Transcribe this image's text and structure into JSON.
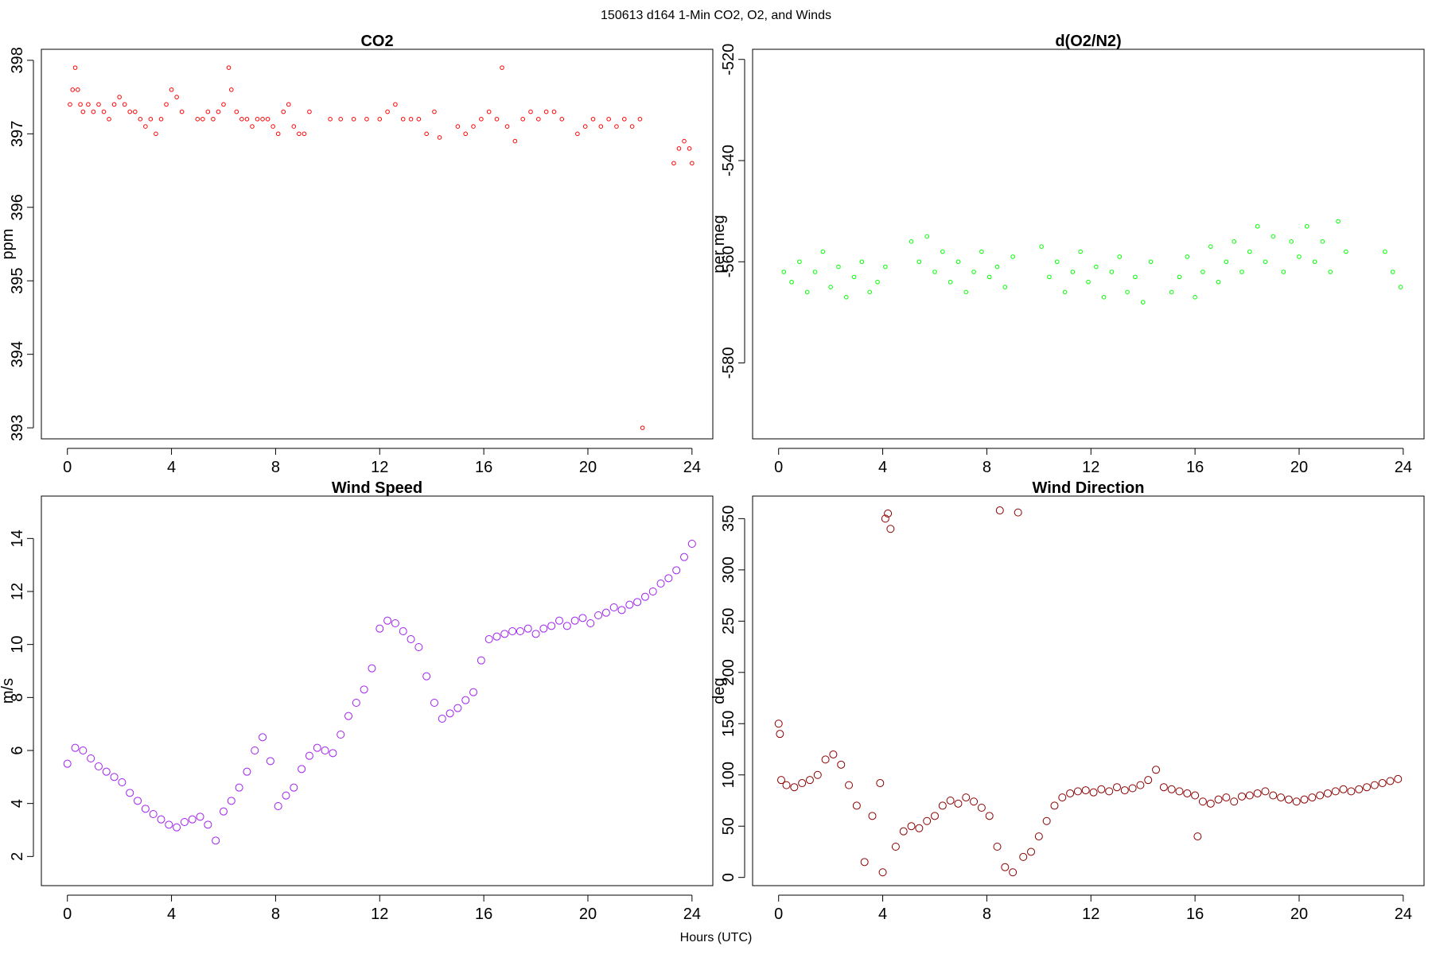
{
  "figure": {
    "suptitle": "150613   d164   1-Min CO2, O2, and Winds",
    "xlabel": "Hours (UTC)"
  },
  "chart_data": [
    {
      "type": "scatter",
      "title": "CO2",
      "xlabel": "",
      "ylabel": "ppm",
      "xlim": [
        -1,
        24.8
      ],
      "ylim": [
        392.85,
        398.15
      ],
      "xticks": [
        0,
        4,
        8,
        12,
        16,
        20,
        24
      ],
      "yticks": [
        393,
        394,
        395,
        396,
        397,
        398
      ],
      "color": "#ff0000",
      "grid": false,
      "x": [
        0.1,
        0.2,
        0.3,
        0.4,
        0.5,
        0.6,
        0.8,
        1.0,
        1.2,
        1.4,
        1.6,
        1.8,
        2.0,
        2.2,
        2.4,
        2.6,
        2.8,
        3.0,
        3.2,
        3.4,
        3.6,
        3.8,
        4.0,
        4.2,
        4.4,
        5.0,
        5.2,
        5.4,
        5.6,
        5.8,
        6.0,
        6.2,
        6.3,
        6.5,
        6.7,
        6.9,
        7.1,
        7.3,
        7.5,
        7.7,
        7.9,
        8.1,
        8.3,
        8.5,
        8.7,
        8.9,
        9.1,
        9.3,
        10.1,
        10.5,
        11.0,
        11.5,
        12.0,
        12.3,
        12.6,
        12.9,
        13.2,
        13.5,
        13.8,
        14.1,
        14.3,
        15.0,
        15.3,
        15.6,
        15.9,
        16.2,
        16.5,
        16.7,
        16.9,
        17.2,
        17.5,
        17.8,
        18.1,
        18.4,
        18.7,
        19.0,
        19.6,
        19.9,
        20.2,
        20.5,
        20.8,
        21.1,
        21.4,
        21.7,
        22.0,
        22.1,
        23.3,
        23.5,
        23.7,
        23.9,
        24.0
      ],
      "y": [
        397.4,
        397.6,
        397.9,
        397.6,
        397.4,
        397.3,
        397.4,
        397.3,
        397.4,
        397.3,
        397.2,
        397.4,
        397.5,
        397.4,
        397.3,
        397.3,
        397.2,
        397.1,
        397.2,
        397.0,
        397.2,
        397.4,
        397.6,
        397.5,
        397.3,
        397.2,
        397.2,
        397.3,
        397.2,
        397.3,
        397.4,
        397.9,
        397.6,
        397.3,
        397.2,
        397.2,
        397.1,
        397.2,
        397.2,
        397.2,
        397.1,
        397.0,
        397.3,
        397.4,
        397.1,
        397.0,
        397.0,
        397.3,
        397.2,
        397.2,
        397.2,
        397.2,
        397.2,
        397.3,
        397.4,
        397.2,
        397.2,
        397.2,
        397.0,
        397.3,
        396.95,
        397.1,
        397.0,
        397.1,
        397.2,
        397.3,
        397.2,
        397.9,
        397.1,
        396.9,
        397.2,
        397.3,
        397.2,
        397.3,
        397.3,
        397.2,
        397.0,
        397.1,
        397.2,
        397.1,
        397.2,
        397.1,
        397.2,
        397.1,
        397.2,
        393.0,
        396.6,
        396.8,
        396.9,
        396.8,
        396.6
      ]
    },
    {
      "type": "scatter",
      "title": "d(O2/N2)",
      "xlabel": "",
      "ylabel": "per meg",
      "xlim": [
        -1,
        24.8
      ],
      "ylim": [
        -595,
        -518
      ],
      "xticks": [
        0,
        4,
        8,
        12,
        16,
        20,
        24
      ],
      "yticks": [
        -580,
        -560,
        -540,
        -520
      ],
      "color": "#00ff00",
      "grid": false,
      "x": [
        0.2,
        0.5,
        0.8,
        1.1,
        1.4,
        1.7,
        2.0,
        2.3,
        2.6,
        2.9,
        3.2,
        3.5,
        3.8,
        4.1,
        5.1,
        5.4,
        5.7,
        6.0,
        6.3,
        6.6,
        6.9,
        7.2,
        7.5,
        7.8,
        8.1,
        8.4,
        8.7,
        9.0,
        10.1,
        10.4,
        10.7,
        11.0,
        11.3,
        11.6,
        11.9,
        12.2,
        12.5,
        12.8,
        13.1,
        13.4,
        13.7,
        14.0,
        14.3,
        15.1,
        15.4,
        15.7,
        16.0,
        16.3,
        16.6,
        16.9,
        17.2,
        17.5,
        17.8,
        18.1,
        18.4,
        18.7,
        19.0,
        19.4,
        19.7,
        20.0,
        20.3,
        20.6,
        20.9,
        21.2,
        21.5,
        21.8,
        23.3,
        23.6,
        23.9
      ],
      "y": [
        -562,
        -564,
        -560,
        -566,
        -562,
        -558,
        -565,
        -561,
        -567,
        -563,
        -560,
        -566,
        -564,
        -561,
        -556,
        -560,
        -555,
        -562,
        -558,
        -564,
        -560,
        -566,
        -562,
        -558,
        -563,
        -561,
        -565,
        -559,
        -557,
        -563,
        -560,
        -566,
        -562,
        -558,
        -564,
        -561,
        -567,
        -562,
        -559,
        -566,
        -563,
        -568,
        -560,
        -566,
        -563,
        -559,
        -567,
        -562,
        -557,
        -564,
        -560,
        -556,
        -562,
        -558,
        -553,
        -560,
        -555,
        -562,
        -556,
        -559,
        -553,
        -560,
        -556,
        -562,
        -552,
        -558,
        -558,
        -562,
        -565
      ]
    },
    {
      "type": "scatter",
      "title": "Wind Speed",
      "xlabel": "",
      "ylabel": "m/s",
      "xlim": [
        -1,
        24.8
      ],
      "ylim": [
        0.9,
        15.6
      ],
      "xticks": [
        0,
        4,
        8,
        12,
        16,
        20,
        24
      ],
      "yticks": [
        2,
        4,
        6,
        8,
        10,
        12,
        14
      ],
      "color": "#a020f0",
      "grid": false,
      "x": [
        0.0,
        0.3,
        0.6,
        0.9,
        1.2,
        1.5,
        1.8,
        2.1,
        2.4,
        2.7,
        3.0,
        3.3,
        3.6,
        3.9,
        4.2,
        4.5,
        4.8,
        5.1,
        5.4,
        5.7,
        6.0,
        6.3,
        6.6,
        6.9,
        7.2,
        7.5,
        7.8,
        8.1,
        8.4,
        8.7,
        9.0,
        9.3,
        9.6,
        9.9,
        10.2,
        10.5,
        10.8,
        11.1,
        11.4,
        11.7,
        12.0,
        12.3,
        12.6,
        12.9,
        13.2,
        13.5,
        13.8,
        14.1,
        14.4,
        14.7,
        15.0,
        15.3,
        15.6,
        15.9,
        16.2,
        16.5,
        16.8,
        17.1,
        17.4,
        17.7,
        18.0,
        18.3,
        18.6,
        18.9,
        19.2,
        19.5,
        19.8,
        20.1,
        20.4,
        20.7,
        21.0,
        21.3,
        21.6,
        21.9,
        22.2,
        22.5,
        22.8,
        23.1,
        23.4,
        23.7,
        24.0
      ],
      "y": [
        5.5,
        6.1,
        6.0,
        5.7,
        5.4,
        5.2,
        5.0,
        4.8,
        4.4,
        4.1,
        3.8,
        3.6,
        3.4,
        3.2,
        3.1,
        3.3,
        3.4,
        3.5,
        3.2,
        2.6,
        3.7,
        4.1,
        4.6,
        5.2,
        6.0,
        6.5,
        5.6,
        3.9,
        4.3,
        4.6,
        5.3,
        5.8,
        6.1,
        6.0,
        5.9,
        6.6,
        7.3,
        7.8,
        8.3,
        9.1,
        10.6,
        10.9,
        10.8,
        10.5,
        10.2,
        9.9,
        8.8,
        7.8,
        7.2,
        7.4,
        7.6,
        7.9,
        8.2,
        9.4,
        10.2,
        10.3,
        10.4,
        10.5,
        10.5,
        10.6,
        10.4,
        10.6,
        10.7,
        10.9,
        10.7,
        10.9,
        11.0,
        10.8,
        11.1,
        11.2,
        11.4,
        11.3,
        11.5,
        11.6,
        11.8,
        12.0,
        12.3,
        12.5,
        12.8,
        13.3,
        13.8
      ]
    },
    {
      "type": "scatter",
      "title": "Wind Direction",
      "xlabel": "",
      "ylabel": "deg",
      "xlim": [
        -1,
        24.8
      ],
      "ylim": [
        -8,
        372
      ],
      "xticks": [
        0,
        4,
        8,
        12,
        16,
        20,
        24
      ],
      "yticks": [
        0,
        50,
        100,
        150,
        200,
        250,
        300,
        350
      ],
      "color": "#8b0000",
      "grid": false,
      "x": [
        0.0,
        0.05,
        0.1,
        0.3,
        0.6,
        0.9,
        1.2,
        1.5,
        1.8,
        2.1,
        2.4,
        2.7,
        3.0,
        3.3,
        3.6,
        3.9,
        4.0,
        4.1,
        4.2,
        4.3,
        4.5,
        4.8,
        5.1,
        5.4,
        5.7,
        6.0,
        6.3,
        6.6,
        6.9,
        7.2,
        7.5,
        7.8,
        8.1,
        8.4,
        8.5,
        8.7,
        9.0,
        9.2,
        9.4,
        9.7,
        10.0,
        10.3,
        10.6,
        10.9,
        11.2,
        11.5,
        11.8,
        12.1,
        12.4,
        12.7,
        13.0,
        13.3,
        13.6,
        13.9,
        14.2,
        14.5,
        14.8,
        15.1,
        15.4,
        15.7,
        16.0,
        16.1,
        16.3,
        16.6,
        16.9,
        17.2,
        17.5,
        17.8,
        18.1,
        18.4,
        18.7,
        19.0,
        19.3,
        19.6,
        19.9,
        20.2,
        20.5,
        20.8,
        21.1,
        21.4,
        21.7,
        22.0,
        22.3,
        22.6,
        22.9,
        23.2,
        23.5,
        23.8
      ],
      "y": [
        150,
        140,
        95,
        90,
        88,
        92,
        95,
        100,
        115,
        120,
        110,
        90,
        70,
        15,
        60,
        92,
        5,
        350,
        355,
        340,
        30,
        45,
        50,
        48,
        55,
        60,
        70,
        75,
        72,
        78,
        74,
        68,
        60,
        30,
        358,
        10,
        5,
        356,
        20,
        25,
        40,
        55,
        70,
        78,
        82,
        84,
        85,
        83,
        86,
        84,
        88,
        85,
        87,
        90,
        95,
        105,
        88,
        86,
        84,
        82,
        80,
        40,
        74,
        72,
        76,
        78,
        74,
        79,
        80,
        82,
        84,
        80,
        78,
        76,
        74,
        76,
        78,
        80,
        82,
        84,
        86,
        84,
        86,
        88,
        90,
        92,
        94,
        96
      ]
    }
  ]
}
